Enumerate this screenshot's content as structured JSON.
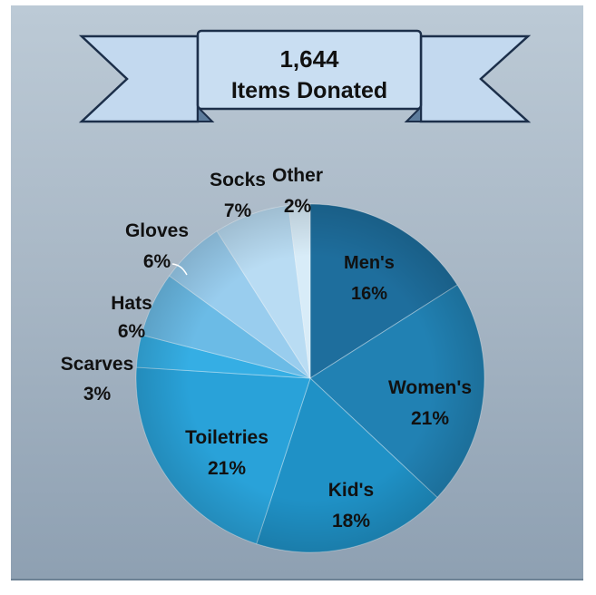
{
  "banner": {
    "line1": "1,644",
    "line2": "Items Donated"
  },
  "colors": {
    "background_top": "#bccad6",
    "background_bottom": "#8ea0b2",
    "banner_fill": "#c3d9ef",
    "banner_stroke": "#1c2f4a"
  },
  "chart_data": {
    "type": "pie",
    "start_angle": "12 o'clock",
    "direction": "clockwise",
    "slices": [
      {
        "label": "Men's",
        "value_label": "16%",
        "value": 16,
        "color": "#1e6e9d",
        "label_position": "inside"
      },
      {
        "label": "Women's",
        "value_label": "21%",
        "value": 21,
        "color": "#2181b3",
        "label_position": "inside"
      },
      {
        "label": "Kid's",
        "value_label": "18%",
        "value": 18,
        "color": "#1f91c6",
        "label_position": "inside"
      },
      {
        "label": "Toiletries",
        "value_label": "21%",
        "value": 21,
        "color": "#29a2d9",
        "label_position": "inside"
      },
      {
        "label": "Scarves",
        "value_label": "3%",
        "value": 3,
        "color": "#35aee4",
        "label_position": "outside"
      },
      {
        "label": "Hats",
        "value_label": "6%",
        "value": 6,
        "color": "#6bbbe6",
        "label_position": "outside"
      },
      {
        "label": "Gloves",
        "value_label": "6%",
        "value": 6,
        "color": "#99cdee",
        "label_position": "outside"
      },
      {
        "label": "Socks",
        "value_label": "7%",
        "value": 7,
        "color": "#b9dcf3",
        "label_position": "outside"
      },
      {
        "label": "Other",
        "value_label": "2%",
        "value": 2,
        "color": "#d8ecf8",
        "label_position": "outside"
      }
    ]
  }
}
